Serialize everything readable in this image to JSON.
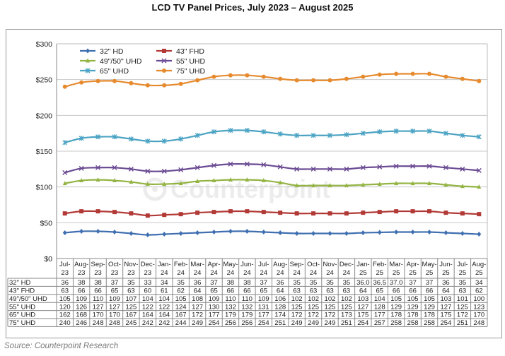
{
  "title": "LCD TV Panel Prices, July 2023 – August 2025",
  "source": "Source: Counterpoint Research",
  "watermark": "Counterpoint",
  "chart_data": {
    "type": "line",
    "title": "LCD TV Panel Prices, July 2023 – August 2025",
    "xlabel": "",
    "ylabel": "",
    "ylim": [
      0,
      300
    ],
    "ytick_labels": [
      "$0",
      "$50",
      "$100",
      "$150",
      "$200",
      "$250",
      "$300"
    ],
    "grid": true,
    "legend_position": "top-left",
    "categories": [
      [
        "Jul-",
        "23"
      ],
      [
        "Aug-",
        "23"
      ],
      [
        "Sep-",
        "23"
      ],
      [
        "Oct-",
        "23"
      ],
      [
        "Nov-",
        "23"
      ],
      [
        "Dec-",
        "23"
      ],
      [
        "Jan-",
        "24"
      ],
      [
        "Feb-",
        "24"
      ],
      [
        "Mar-",
        "24"
      ],
      [
        "Apr-",
        "24"
      ],
      [
        "May-",
        "24"
      ],
      [
        "Jun-",
        "24"
      ],
      [
        "Jul-",
        "24"
      ],
      [
        "Aug-",
        "24"
      ],
      [
        "Sep-",
        "24"
      ],
      [
        "Oct-",
        "24"
      ],
      [
        "Nov-",
        "24"
      ],
      [
        "Dec-",
        "24"
      ],
      [
        "Jan-",
        "25"
      ],
      [
        "Feb-",
        "25"
      ],
      [
        "Mar-",
        "25"
      ],
      [
        "Apr-",
        "25"
      ],
      [
        "May-",
        "25"
      ],
      [
        "Jun-",
        "25"
      ],
      [
        "Jul-",
        "25"
      ],
      [
        "Aug-",
        "25"
      ]
    ],
    "series": [
      {
        "name": "32\" HD",
        "color": "#3f6fb0",
        "marker": "diamond",
        "values": [
          36,
          38,
          38,
          37,
          35,
          33,
          34,
          35,
          36,
          37,
          38,
          38,
          37,
          36,
          35,
          35,
          35,
          35,
          36.0,
          36.5,
          37.0,
          37,
          37,
          36,
          35,
          34
        ],
        "labels": [
          "36",
          "38",
          "38",
          "37",
          "35",
          "33",
          "34",
          "35",
          "36",
          "37",
          "38",
          "38",
          "37",
          "36",
          "35",
          "35",
          "35",
          "35",
          "36.0",
          "36.5",
          "37.0",
          "37",
          "37",
          "36",
          "35",
          "34"
        ]
      },
      {
        "name": "43\" FHD",
        "color": "#b23a36",
        "marker": "square",
        "values": [
          63,
          66,
          66,
          65,
          63,
          60,
          61,
          62,
          64,
          65,
          66,
          66,
          65,
          64,
          63,
          63,
          63,
          63,
          64,
          65,
          66,
          66,
          66,
          64,
          63,
          62
        ]
      },
      {
        "name": "49\"/50\" UHD",
        "color": "#93b443",
        "marker": "triangle",
        "values": [
          105,
          109,
          110,
          109,
          107,
          104,
          104,
          105,
          108,
          109,
          110,
          110,
          109,
          106,
          102,
          102,
          102,
          102,
          103,
          104,
          105,
          105,
          105,
          103,
          101,
          100
        ]
      },
      {
        "name": "55\" UHD",
        "color": "#6a4a93",
        "marker": "x",
        "values": [
          120,
          126,
          127,
          127,
          125,
          122,
          122,
          124,
          127,
          130,
          132,
          132,
          131,
          128,
          125,
          125,
          125,
          125,
          127,
          128,
          129,
          129,
          129,
          127,
          125,
          123
        ]
      },
      {
        "name": "65\" UHD",
        "color": "#4ba3c3",
        "marker": "star",
        "values": [
          162,
          168,
          170,
          170,
          167,
          164,
          164,
          167,
          172,
          177,
          179,
          179,
          177,
          174,
          172,
          172,
          172,
          173,
          175,
          177,
          178,
          178,
          178,
          175,
          172,
          170
        ]
      },
      {
        "name": "75\" UHD",
        "color": "#e68a2e",
        "marker": "circle",
        "values": [
          240,
          246,
          248,
          248,
          245,
          242,
          242,
          244,
          249,
          254,
          256,
          256,
          254,
          251,
          249,
          249,
          249,
          251,
          254,
          257,
          258,
          258,
          258,
          254,
          251,
          248
        ]
      }
    ]
  }
}
